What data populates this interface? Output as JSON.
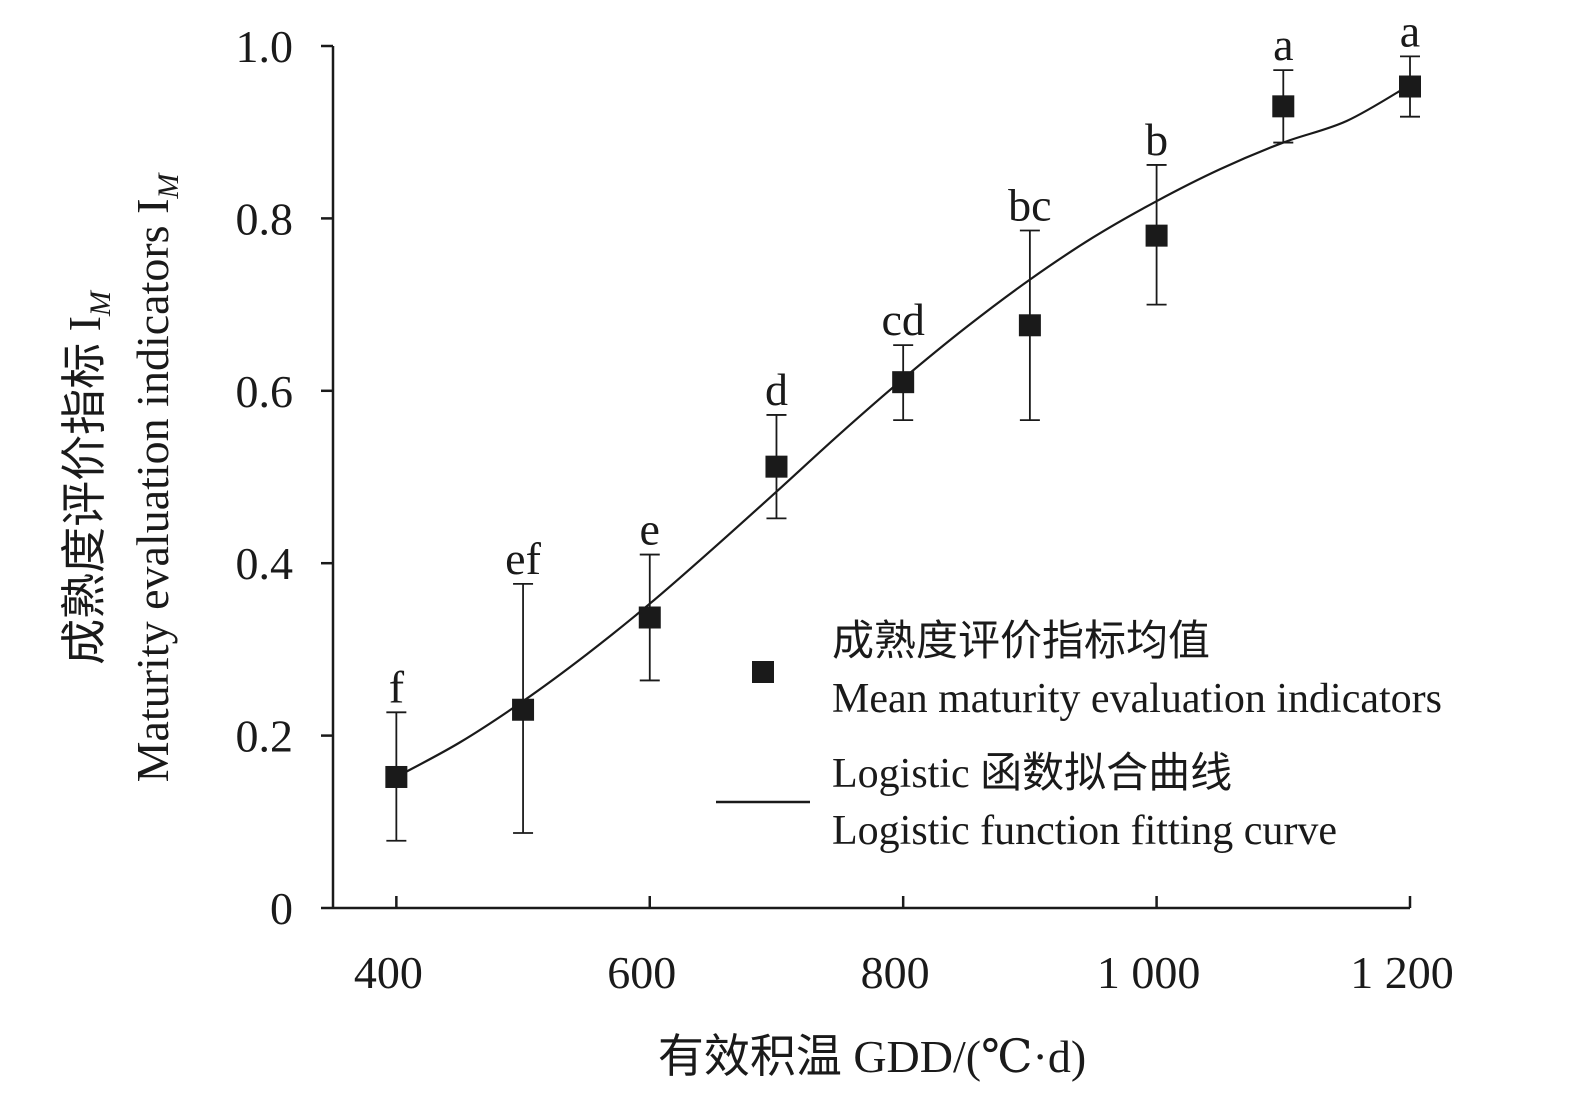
{
  "chart_data": {
    "type": "scatter",
    "title": "",
    "xlabel": "有效积温 GDD/(℃·d)",
    "ylabel_cn": "成熟度评价指标 I",
    "ylabel_en": "Maturity evaluation indicators I",
    "ylabel_subscript": "M",
    "xlim": [
      350,
      1200
    ],
    "ylim": [
      0,
      1.0
    ],
    "x_ticks": [
      400,
      600,
      800,
      1000,
      1200
    ],
    "x_tick_labels": [
      "400",
      "600",
      "800",
      "1 000",
      "1 200"
    ],
    "y_ticks": [
      0,
      0.2,
      0.4,
      0.6,
      0.8,
      1.0
    ],
    "y_tick_labels": [
      "0",
      "0.2",
      "0.4",
      "0.6",
      "0.8",
      "1.0"
    ],
    "series": [
      {
        "name": "成熟度评价指标均值 Mean maturity evaluation indicators",
        "marker": "square",
        "x": [
          400,
          500,
          600,
          700,
          800,
          900,
          1000,
          1100,
          1200
        ],
        "y": [
          0.152,
          0.23,
          0.337,
          0.512,
          0.61,
          0.676,
          0.78,
          0.93,
          0.953
        ],
        "y_err_upper": [
          0.227,
          0.376,
          0.41,
          0.572,
          0.653,
          0.786,
          0.862,
          0.972,
          0.988
        ],
        "y_err_lower": [
          0.078,
          0.087,
          0.264,
          0.452,
          0.566,
          0.566,
          0.7,
          0.888,
          0.918
        ],
        "labels": [
          "f",
          "ef",
          "e",
          "d",
          "cd",
          "bc",
          "b",
          "a",
          "a"
        ]
      },
      {
        "name": "Logistic 函数拟合曲线 Logistic function fitting curve",
        "type": "line",
        "x": [
          400,
          450,
          500,
          550,
          600,
          650,
          700,
          750,
          800,
          850,
          900,
          950,
          1000,
          1050,
          1100,
          1150,
          1200
        ],
        "y": [
          0.152,
          0.192,
          0.24,
          0.294,
          0.353,
          0.417,
          0.483,
          0.55,
          0.614,
          0.674,
          0.729,
          0.778,
          0.82,
          0.857,
          0.888,
          0.913,
          0.955
        ]
      }
    ],
    "legend": {
      "placement": "bottom-right",
      "items": [
        {
          "line1": "成熟度评价指标均值",
          "line2": "Mean maturity evaluation indicators",
          "symbol": "square"
        },
        {
          "line1": "Logistic 函数拟合曲线",
          "line2": "Logistic function fitting curve",
          "symbol": "line"
        }
      ]
    },
    "grid": false,
    "colors": {
      "marker": "#1a1a1a",
      "line": "#1a1a1a",
      "axis": "#1a1a1a"
    }
  }
}
